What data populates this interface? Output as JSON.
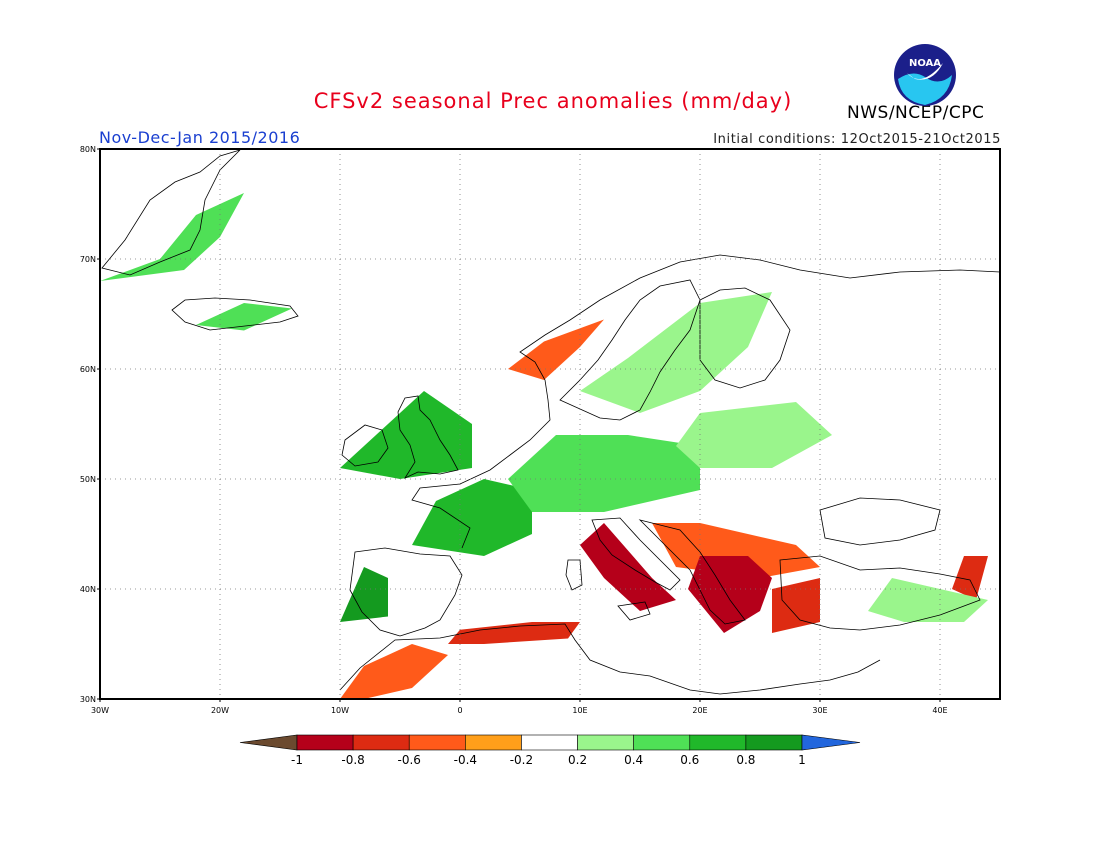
{
  "header": {
    "title": "CFSv2 seasonal Prec anomalies (mm/day)",
    "period": "Nov-Dec-Jan 2015/2016",
    "initial_conditions": "Initial conditions: 12Oct2015-21Oct2015",
    "agency": "NWS/NCEP/CPC",
    "logo_text": "NOAA"
  },
  "map": {
    "lon_range": [
      -30,
      45
    ],
    "lat_range": [
      30,
      80
    ],
    "lat_ticks": [
      "30N",
      "40N",
      "50N",
      "60N",
      "70N",
      "80N"
    ],
    "lon_ticks": [
      "30W",
      "20W",
      "10W",
      "0",
      "10E",
      "20E",
      "30E",
      "40E"
    ]
  },
  "colorbar": {
    "labels": [
      "-1",
      "-0.8",
      "-0.6",
      "-0.4",
      "-0.2",
      "0.2",
      "0.4",
      "0.6",
      "0.8",
      "1"
    ],
    "colors": [
      "#6b4a2f",
      "#b5001a",
      "#dd2b12",
      "#ff5a1a",
      "#ff9f1a",
      "#ffffff",
      "#9af58c",
      "#4fe056",
      "#20b82a",
      "#149a1f",
      "#2266dd"
    ]
  },
  "anomaly_regions": [
    {
      "label": "Greenland",
      "level": 0.4
    },
    {
      "label": "Iceland",
      "level": 0.5
    },
    {
      "label": "Western Norway",
      "level": -0.4
    },
    {
      "label": "Scandinavia",
      "level": 0.3
    },
    {
      "label": "British Isles",
      "level": 0.6
    },
    {
      "label": "France",
      "level": 0.7
    },
    {
      "label": "Central Europe",
      "level": 0.5
    },
    {
      "label": "Poland and Baltics",
      "level": 0.3
    },
    {
      "label": "Portugal",
      "level": 0.9
    },
    {
      "label": "Algeria coast",
      "level": -0.7
    },
    {
      "label": "Morocco",
      "level": -0.4
    },
    {
      "label": "Italy",
      "level": -0.8
    },
    {
      "label": "Balkans",
      "level": -0.5
    },
    {
      "label": "Greece",
      "level": -0.9
    },
    {
      "label": "Western Turkey",
      "level": -0.7
    },
    {
      "label": "Caucasus",
      "level": -0.7
    },
    {
      "label": "Eastern Turkey",
      "level": 0.3
    }
  ]
}
